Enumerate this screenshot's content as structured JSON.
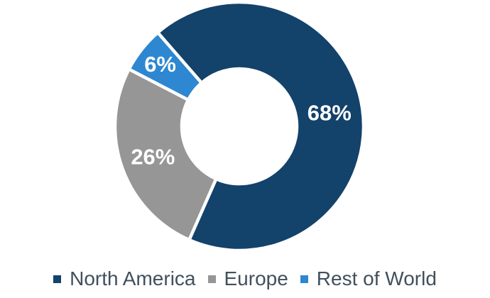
{
  "chart_data": {
    "type": "pie",
    "subtype": "donut",
    "title": "",
    "categories": [
      "North America",
      "Europe",
      "Rest of World"
    ],
    "values": [
      68,
      26,
      6
    ],
    "data_labels": [
      "68%",
      "26%",
      "6%"
    ],
    "colors": [
      "#13426B",
      "#969696",
      "#2E87D1"
    ],
    "data_label_color": "#FFFFFF",
    "slice_border_color": "#FFFFFF",
    "legend_position": "bottom",
    "legend_text_color": "#42505C",
    "start_angle_deg": -41,
    "donut_hole_ratio": 0.463,
    "label_radius_ratios": [
      0.733,
      0.737,
      0.81
    ]
  }
}
